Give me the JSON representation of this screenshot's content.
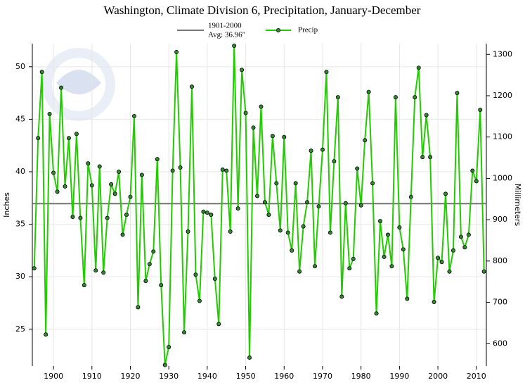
{
  "chart_data": {
    "type": "line",
    "title": "Washington, Climate Division 6, Precipitation, January-December",
    "y_label": "Inches",
    "y2_label": "Millimeters",
    "x": [
      1895,
      1896,
      1897,
      1898,
      1899,
      1900,
      1901,
      1902,
      1903,
      1904,
      1905,
      1906,
      1907,
      1908,
      1909,
      1910,
      1911,
      1912,
      1913,
      1914,
      1915,
      1916,
      1917,
      1918,
      1919,
      1920,
      1921,
      1922,
      1923,
      1924,
      1925,
      1926,
      1927,
      1928,
      1929,
      1930,
      1931,
      1932,
      1933,
      1934,
      1935,
      1936,
      1937,
      1938,
      1939,
      1940,
      1941,
      1942,
      1943,
      1944,
      1945,
      1946,
      1947,
      1948,
      1949,
      1950,
      1951,
      1952,
      1953,
      1954,
      1955,
      1956,
      1957,
      1958,
      1959,
      1960,
      1961,
      1962,
      1963,
      1964,
      1965,
      1966,
      1967,
      1968,
      1969,
      1970,
      1971,
      1972,
      1973,
      1974,
      1975,
      1976,
      1977,
      1978,
      1979,
      1980,
      1981,
      1982,
      1983,
      1984,
      1985,
      1986,
      1987,
      1988,
      1989,
      1990,
      1991,
      1992,
      1993,
      1994,
      1995,
      1996,
      1997,
      1998,
      1999,
      2000,
      2001,
      2002,
      2003,
      2004,
      2005,
      2006,
      2007,
      2008,
      2009,
      2010,
      2011,
      2012
    ],
    "series": [
      {
        "name": "Precip",
        "color": "#22cc00",
        "marker_color": "#2e8b2e",
        "values": [
          30.8,
          43.2,
          49.5,
          24.5,
          45.5,
          39.9,
          38.1,
          48.0,
          38.6,
          43.2,
          35.7,
          43.6,
          35.6,
          29.2,
          40.8,
          38.7,
          30.6,
          40.5,
          30.4,
          35.6,
          38.8,
          37.9,
          40.0,
          34.0,
          35.9,
          37.6,
          45.3,
          27.1,
          39.7,
          29.6,
          31.2,
          32.4,
          41.2,
          29.2,
          21.6,
          23.3,
          40.1,
          51.4,
          40.4,
          24.7,
          34.3,
          48.1,
          30.2,
          27.7,
          36.2,
          36.1,
          35.9,
          29.8,
          25.5,
          40.2,
          40.1,
          34.3,
          52.0,
          36.5,
          49.7,
          45.6,
          22.3,
          44.2,
          37.7,
          46.2,
          37.1,
          35.9,
          43.4,
          38.9,
          34.4,
          43.3,
          34.2,
          32.5,
          38.9,
          30.5,
          34.8,
          37.1,
          42.0,
          31.0,
          36.7,
          42.1,
          49.5,
          34.2,
          41.0,
          47.1,
          28.1,
          37.0,
          30.8,
          31.7,
          40.3,
          36.8,
          43.0,
          47.6,
          38.9,
          26.5,
          35.3,
          31.9,
          34.0,
          31.0,
          47.1,
          34.7,
          32.6,
          27.9,
          37.6,
          47.1,
          49.9,
          41.4,
          45.4,
          41.4,
          27.6,
          31.8,
          31.4,
          37.9,
          30.5,
          32.5,
          47.5,
          33.8,
          32.8,
          34.0,
          40.1,
          39.1,
          45.9,
          30.5
        ]
      }
    ],
    "average": {
      "label": "1901-2000",
      "value_label": "Avg: 36.96\"",
      "value": 36.96,
      "color": "#666666"
    },
    "xlim": [
      1894.5,
      2012.6
    ],
    "xticks": [
      1900,
      1910,
      1920,
      1930,
      1940,
      1950,
      1960,
      1970,
      1980,
      1990,
      2000,
      2010
    ],
    "ylim": [
      21.5,
      52.2
    ],
    "yticks": [
      25,
      30,
      35,
      40,
      45,
      50
    ],
    "y2lim": [
      546,
      1326
    ],
    "y2ticks": [
      600,
      700,
      800,
      900,
      1000,
      1100,
      1200,
      1300
    ],
    "grid": true
  }
}
